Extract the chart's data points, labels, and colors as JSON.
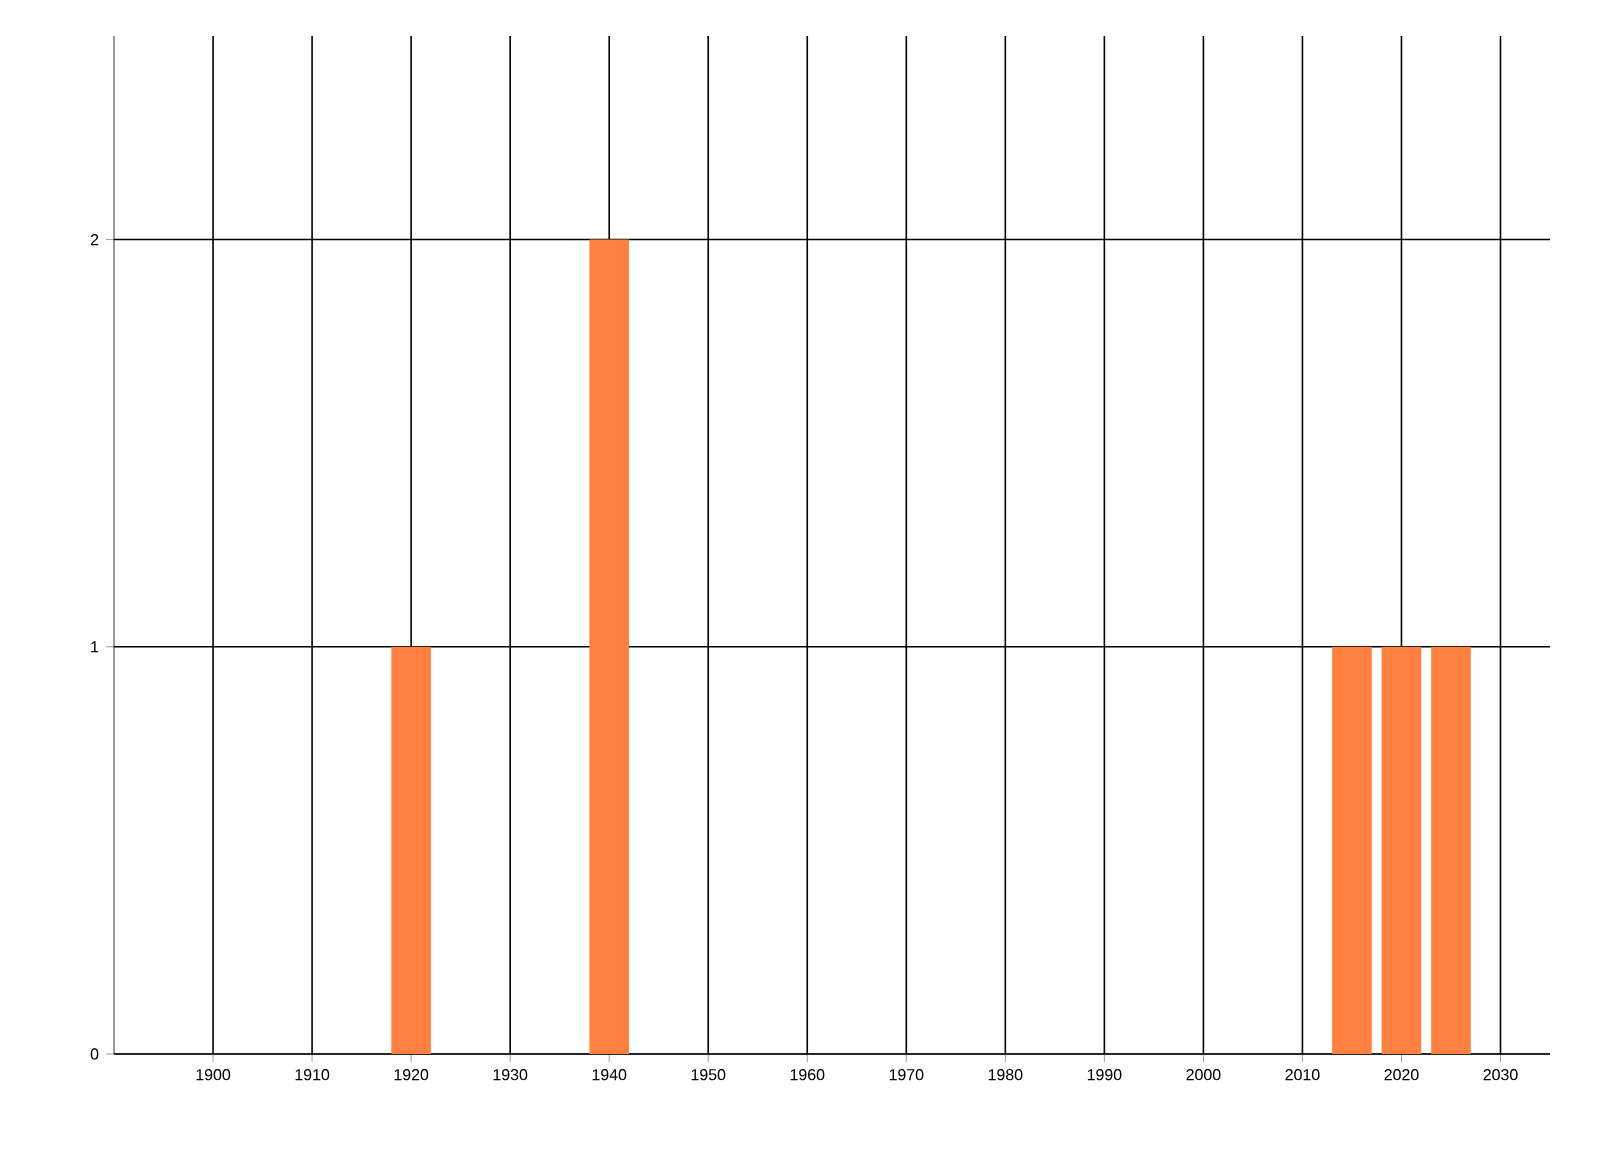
{
  "chart_data": {
    "type": "bar",
    "x": [
      1920,
      1940,
      2015,
      2020,
      2025
    ],
    "values": [
      1,
      2,
      1,
      1,
      1
    ],
    "color": "#ff8040",
    "xlim": [
      1890,
      2035
    ],
    "ylim": [
      0,
      2.5
    ],
    "xticks": [
      1900,
      1910,
      1920,
      1930,
      1940,
      1950,
      1960,
      1970,
      1980,
      1990,
      2000,
      2010,
      2020,
      2030
    ],
    "yticks": [
      0,
      1,
      2
    ],
    "grid": true
  }
}
